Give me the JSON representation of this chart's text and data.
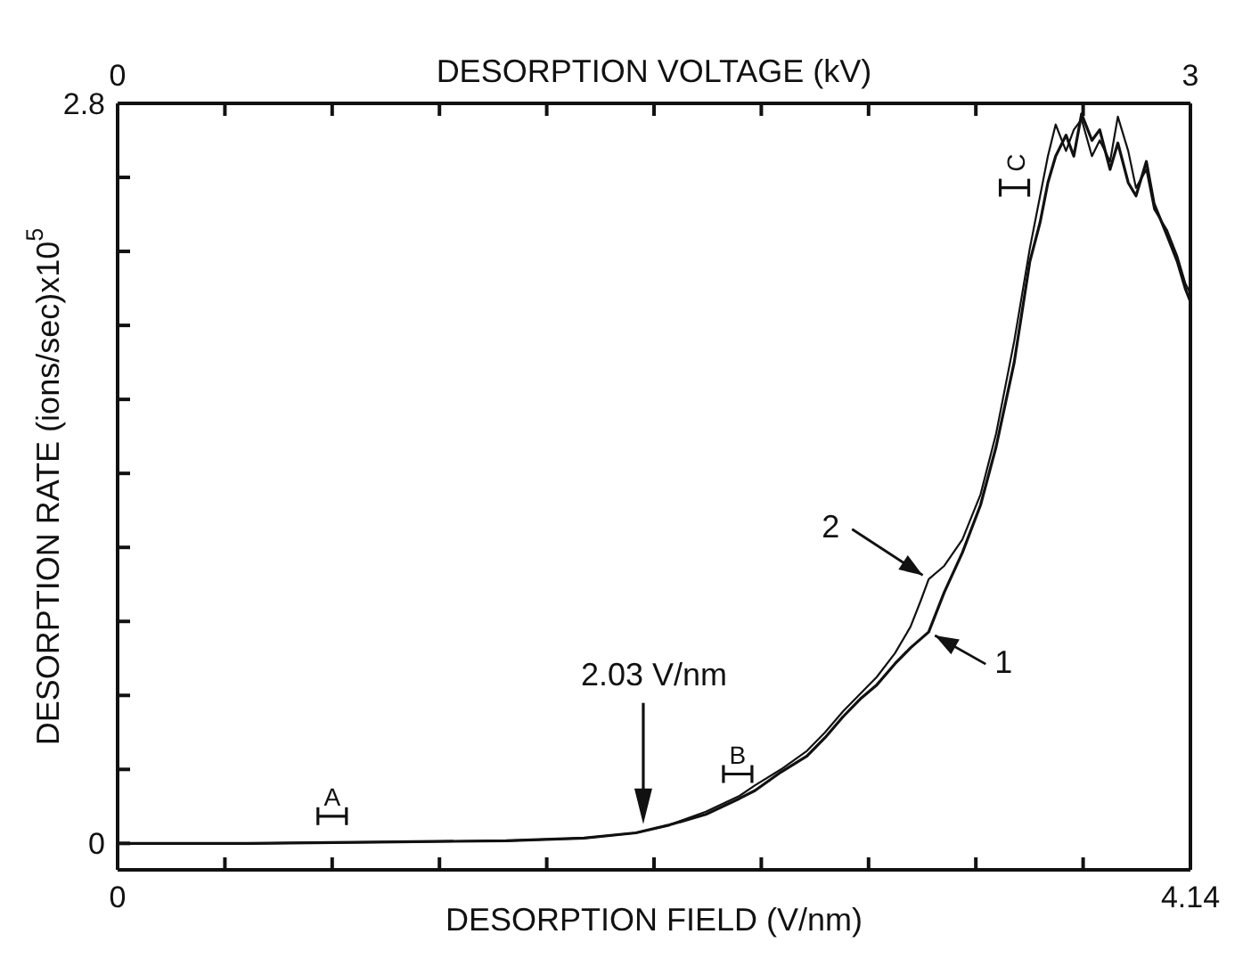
{
  "chart_data": {
    "type": "line",
    "xlabel": "DESORPTION FIELD (V/nm)",
    "ylabel": "DESORPTION RATE (ions/sec)x10$^{5}$",
    "x2label": "DESORPTION VOLTAGE (kV)",
    "xlim": [
      0,
      4.14
    ],
    "xticks": [
      0,
      {
        "value": 0.414,
        "label": null
      },
      {
        "value": 0.828,
        "label": null
      },
      {
        "value": 1.242,
        "label": null
      },
      {
        "value": 1.656,
        "label": null
      },
      {
        "value": 2.07,
        "label": null
      },
      {
        "value": 2.484,
        "label": null
      },
      {
        "value": 2.898,
        "label": null
      },
      {
        "value": 3.312,
        "label": null
      },
      {
        "value": 3.726,
        "label": null
      },
      4.14
    ],
    "x2lim": [
      0,
      3
    ],
    "x2ticks": [
      0,
      {
        "value": 0.3,
        "label": null
      },
      {
        "value": 0.6,
        "label": null
      },
      {
        "value": 0.9,
        "label": null
      },
      {
        "value": 1.2,
        "label": null
      },
      {
        "value": 1.5,
        "label": null
      },
      {
        "value": 1.8,
        "label": null
      },
      {
        "value": 2.1,
        "label": null
      },
      {
        "value": 2.4,
        "label": null
      },
      {
        "value": 2.7,
        "label": null
      },
      3
    ],
    "ylim": [
      -0.1,
      2.8
    ],
    "yticks": [
      0,
      {
        "value": 0.28,
        "label": null
      },
      {
        "value": 0.56,
        "label": null
      },
      {
        "value": 0.84,
        "label": null
      },
      {
        "value": 1.12,
        "label": null
      },
      {
        "value": 1.4,
        "label": null
      },
      {
        "value": 1.68,
        "label": null
      },
      {
        "value": 1.96,
        "label": null
      },
      {
        "value": 2.24,
        "label": null
      },
      {
        "value": 2.52,
        "label": null
      },
      2.8
    ],
    "series": [
      {
        "name": "1",
        "color": "#111111",
        "x": [
          0,
          0.5,
          1.0,
          1.5,
          1.8,
          2.0,
          2.13,
          2.27,
          2.4,
          2.46,
          2.56,
          2.66,
          2.73,
          2.8,
          2.87,
          2.93,
          3.0,
          3.06,
          3.13,
          3.19,
          3.26,
          3.33,
          3.39,
          3.46,
          3.52,
          3.56,
          3.59,
          3.62,
          3.66,
          3.69,
          3.72,
          3.76,
          3.79,
          3.83,
          3.86,
          3.9,
          3.93,
          3.97,
          4.0,
          4.05,
          4.09,
          4.12,
          4.14
        ],
        "values": [
          0,
          0,
          0.005,
          0.01,
          0.02,
          0.04,
          0.07,
          0.11,
          0.17,
          0.2,
          0.27,
          0.33,
          0.4,
          0.48,
          0.55,
          0.6,
          0.68,
          0.74,
          0.8,
          0.95,
          1.1,
          1.28,
          1.5,
          1.82,
          2.2,
          2.35,
          2.5,
          2.6,
          2.68,
          2.6,
          2.76,
          2.66,
          2.7,
          2.55,
          2.65,
          2.5,
          2.45,
          2.58,
          2.42,
          2.3,
          2.2,
          2.1,
          2.05
        ]
      },
      {
        "name": "2",
        "color": "#111111",
        "x": [
          0,
          0.5,
          1.0,
          1.5,
          1.8,
          2.0,
          2.13,
          2.27,
          2.4,
          2.46,
          2.56,
          2.66,
          2.73,
          2.8,
          2.87,
          2.93,
          3.0,
          3.06,
          3.1,
          3.13,
          3.19,
          3.26,
          3.33,
          3.39,
          3.46,
          3.52,
          3.56,
          3.59,
          3.62,
          3.66,
          3.69,
          3.72,
          3.76,
          3.79,
          3.83,
          3.86,
          3.9,
          3.93,
          3.97,
          4.0,
          4.05,
          4.09,
          4.12,
          4.14
        ],
        "values": [
          0,
          0,
          0.005,
          0.01,
          0.02,
          0.04,
          0.07,
          0.12,
          0.18,
          0.22,
          0.28,
          0.35,
          0.42,
          0.5,
          0.57,
          0.63,
          0.72,
          0.82,
          0.92,
          1.0,
          1.05,
          1.15,
          1.32,
          1.55,
          1.9,
          2.25,
          2.45,
          2.6,
          2.72,
          2.62,
          2.7,
          2.74,
          2.6,
          2.66,
          2.58,
          2.75,
          2.62,
          2.48,
          2.55,
          2.4,
          2.32,
          2.22,
          2.12,
          2.08
        ]
      }
    ],
    "annotations": [
      "2.03 V/nm",
      "A",
      "B",
      "C"
    ]
  }
}
